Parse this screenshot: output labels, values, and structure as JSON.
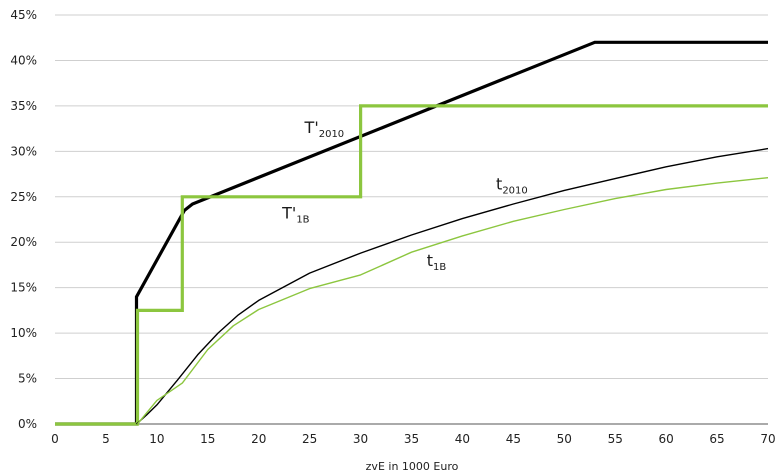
{
  "chart_data": {
    "type": "line",
    "title": "",
    "xlabel": "zvE in 1000 Euro",
    "ylabel": "",
    "xlim": [
      0,
      70
    ],
    "ylim": [
      0,
      45
    ],
    "grid": "horizontal",
    "legend": "none",
    "x_ticks": [
      "0",
      "5",
      "10",
      "15",
      "20",
      "25",
      "30",
      "35",
      "40",
      "45",
      "50",
      "55",
      "60",
      "65",
      "70"
    ],
    "y_ticks": [
      "0%",
      "5%",
      "10%",
      "15%",
      "20%",
      "25%",
      "30%",
      "35%",
      "40%",
      "45%"
    ],
    "series": [
      {
        "key": "T2010",
        "color": "#000000",
        "style": "thick",
        "points": [
          [
            0,
            0
          ],
          [
            8.0,
            0
          ],
          [
            8.0,
            0
          ],
          [
            8.0,
            14
          ],
          [
            12.7,
            23.5
          ],
          [
            13.5,
            24.2
          ],
          [
            53,
            42
          ],
          [
            70,
            42
          ]
        ]
      },
      {
        "key": "T1B",
        "color": "#8cc63f",
        "style": "thick",
        "points": [
          [
            0,
            0
          ],
          [
            8.1,
            0
          ],
          [
            8.1,
            12.5
          ],
          [
            12.5,
            12.5
          ],
          [
            12.5,
            25
          ],
          [
            30,
            25
          ],
          [
            30,
            35
          ],
          [
            70,
            35
          ]
        ]
      },
      {
        "key": "t2010",
        "color": "#000000",
        "style": "thin",
        "points": [
          [
            8.0,
            0
          ],
          [
            9,
            1.0
          ],
          [
            10,
            2.1
          ],
          [
            12,
            4.8
          ],
          [
            14,
            7.6
          ],
          [
            16,
            10
          ],
          [
            18,
            12
          ],
          [
            20,
            13.6
          ],
          [
            25,
            16.6
          ],
          [
            30,
            18.8
          ],
          [
            35,
            20.8
          ],
          [
            40,
            22.6
          ],
          [
            45,
            24.2
          ],
          [
            50,
            25.7
          ],
          [
            55,
            27
          ],
          [
            60,
            28.3
          ],
          [
            65,
            29.4
          ],
          [
            70,
            30.3
          ]
        ]
      },
      {
        "key": "t1B",
        "color": "#8cc63f",
        "style": "thin",
        "points": [
          [
            8.1,
            0
          ],
          [
            10,
            2.6
          ],
          [
            12.5,
            4.5
          ],
          [
            15,
            8.2
          ],
          [
            17.5,
            10.8
          ],
          [
            20,
            12.6
          ],
          [
            25,
            14.9
          ],
          [
            30,
            16.4
          ],
          [
            35,
            18.9
          ],
          [
            40,
            20.7
          ],
          [
            45,
            22.3
          ],
          [
            50,
            23.6
          ],
          [
            55,
            24.8
          ],
          [
            60,
            25.8
          ],
          [
            65,
            26.5
          ],
          [
            70,
            27.1
          ]
        ]
      }
    ],
    "annotations": [
      {
        "key": "T2010",
        "main": "T'",
        "sub": "2010",
        "x": 24.5,
        "y": 32.0
      },
      {
        "key": "T1B",
        "main": "T'",
        "sub": "1B",
        "x": 22.3,
        "y": 22.6
      },
      {
        "key": "t2010",
        "main": "t",
        "sub": "2010",
        "x": 43.3,
        "y": 25.8
      },
      {
        "key": "t1B",
        "main": "t",
        "sub": "1B",
        "x": 36.5,
        "y": 17.4
      }
    ]
  }
}
